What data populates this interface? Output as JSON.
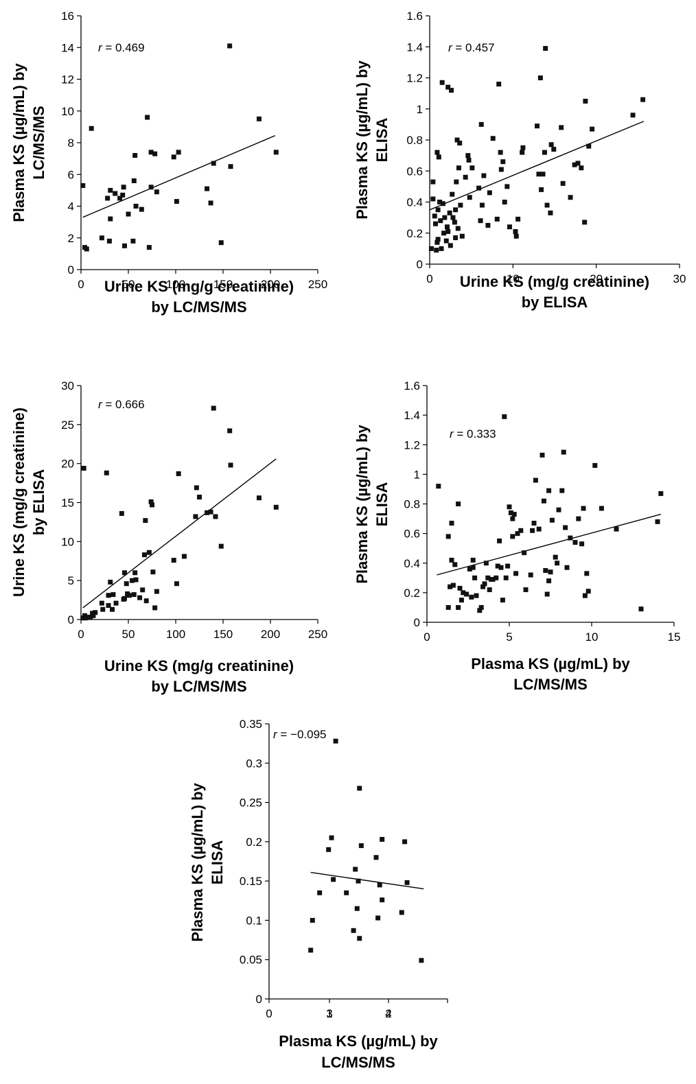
{
  "chart_data": [
    {
      "type": "scatter",
      "correlation_label": {
        "prefix": "r",
        "value": "= 0.469"
      },
      "xlabel": [
        "Urine KS (mg/g creatinine)",
        "by LC/MS/MS"
      ],
      "ylabel": [
        "Plasma KS (µg/mL) by",
        "LC/MS/MS"
      ],
      "xlim": [
        0,
        250
      ],
      "ylim": [
        0,
        16
      ],
      "xticks": [
        0,
        50,
        100,
        150,
        200,
        250
      ],
      "yticks": [
        0,
        2,
        4,
        6,
        8,
        10,
        12,
        14,
        16
      ],
      "trendline": [
        [
          2,
          3.3
        ],
        [
          205,
          8.45
        ]
      ],
      "points": [
        [
          2,
          5.3
        ],
        [
          4,
          1.4
        ],
        [
          6,
          1.3
        ],
        [
          11,
          8.9
        ],
        [
          22,
          2.0
        ],
        [
          28,
          4.5
        ],
        [
          30,
          1.8
        ],
        [
          31,
          3.2
        ],
        [
          31,
          5.0
        ],
        [
          36,
          4.8
        ],
        [
          41,
          4.5
        ],
        [
          44,
          4.7
        ],
        [
          45,
          5.2
        ],
        [
          46,
          1.5
        ],
        [
          50,
          3.5
        ],
        [
          55,
          1.8
        ],
        [
          56,
          5.6
        ],
        [
          57,
          7.2
        ],
        [
          58,
          4.0
        ],
        [
          64,
          3.8
        ],
        [
          70,
          9.6
        ],
        [
          72,
          1.4
        ],
        [
          74,
          5.2
        ],
        [
          74,
          7.4
        ],
        [
          78,
          7.3
        ],
        [
          80,
          4.9
        ],
        [
          98,
          7.1
        ],
        [
          101,
          4.3
        ],
        [
          103,
          7.4
        ],
        [
          133,
          5.1
        ],
        [
          137,
          4.2
        ],
        [
          140,
          6.7
        ],
        [
          148,
          1.7
        ],
        [
          157,
          14.1
        ],
        [
          158,
          6.5
        ],
        [
          188,
          9.5
        ],
        [
          206,
          7.4
        ]
      ]
    },
    {
      "type": "scatter",
      "correlation_label": {
        "prefix": "r",
        "value": "= 0.457"
      },
      "xlabel": [
        "Urine KS (mg/g creatinine)",
        "by ELISA"
      ],
      "ylabel": [
        "Plasma KS (µg/mL) by",
        "ELISA"
      ],
      "xlim": [
        0,
        30
      ],
      "ylim": [
        0,
        1.6
      ],
      "xticks": [
        0,
        10,
        20,
        30
      ],
      "yticks": [
        "0",
        "0.2",
        "0.4",
        "0.6",
        "0.8",
        "1",
        "1.2",
        "1.4",
        "1.6"
      ],
      "trendline": [
        [
          0,
          0.35
        ],
        [
          25.7,
          0.92
        ]
      ],
      "points": [
        [
          0.2,
          0.1
        ],
        [
          0.4,
          0.42
        ],
        [
          0.4,
          0.53
        ],
        [
          0.6,
          0.31
        ],
        [
          0.7,
          0.26
        ],
        [
          0.8,
          0.09
        ],
        [
          0.9,
          0.14
        ],
        [
          0.9,
          0.72
        ],
        [
          1.0,
          0.16
        ],
        [
          1.0,
          0.35
        ],
        [
          1.1,
          0.69
        ],
        [
          1.2,
          0.4
        ],
        [
          1.3,
          0.28
        ],
        [
          1.4,
          0.1
        ],
        [
          1.5,
          1.17
        ],
        [
          1.6,
          0.39
        ],
        [
          1.7,
          0.2
        ],
        [
          1.8,
          0.3
        ],
        [
          2.0,
          0.15
        ],
        [
          2.1,
          0.24
        ],
        [
          2.2,
          0.21
        ],
        [
          2.2,
          1.14
        ],
        [
          2.4,
          0.33
        ],
        [
          2.5,
          0.12
        ],
        [
          2.6,
          1.12
        ],
        [
          2.7,
          0.45
        ],
        [
          2.8,
          0.3
        ],
        [
          3.0,
          0.27
        ],
        [
          3.1,
          0.17
        ],
        [
          3.1,
          0.35
        ],
        [
          3.2,
          0.53
        ],
        [
          3.3,
          0.8
        ],
        [
          3.4,
          0.23
        ],
        [
          3.5,
          0.62
        ],
        [
          3.6,
          0.78
        ],
        [
          3.7,
          0.38
        ],
        [
          3.9,
          0.18
        ],
        [
          4.3,
          0.56
        ],
        [
          4.6,
          0.7
        ],
        [
          4.7,
          0.67
        ],
        [
          4.8,
          0.43
        ],
        [
          5.1,
          0.62
        ],
        [
          5.9,
          0.49
        ],
        [
          6.1,
          0.28
        ],
        [
          6.2,
          0.9
        ],
        [
          6.3,
          0.38
        ],
        [
          6.5,
          0.57
        ],
        [
          7.0,
          0.25
        ],
        [
          7.2,
          0.46
        ],
        [
          7.6,
          0.81
        ],
        [
          8.1,
          0.29
        ],
        [
          8.3,
          1.16
        ],
        [
          8.5,
          0.72
        ],
        [
          8.6,
          0.61
        ],
        [
          8.8,
          0.66
        ],
        [
          9.0,
          0.4
        ],
        [
          9.3,
          0.5
        ],
        [
          9.6,
          0.24
        ],
        [
          10.3,
          0.21
        ],
        [
          10.4,
          0.18
        ],
        [
          10.6,
          0.29
        ],
        [
          11.1,
          0.72
        ],
        [
          11.2,
          0.75
        ],
        [
          12.9,
          0.89
        ],
        [
          13.1,
          0.58
        ],
        [
          13.3,
          1.2
        ],
        [
          13.4,
          0.48
        ],
        [
          13.6,
          0.58
        ],
        [
          13.8,
          0.72
        ],
        [
          13.9,
          1.39
        ],
        [
          14.1,
          0.38
        ],
        [
          14.5,
          0.33
        ],
        [
          14.6,
          0.77
        ],
        [
          14.9,
          0.74
        ],
        [
          15.8,
          0.88
        ],
        [
          16.0,
          0.52
        ],
        [
          16.9,
          0.43
        ],
        [
          17.4,
          0.64
        ],
        [
          17.8,
          0.65
        ],
        [
          18.2,
          0.62
        ],
        [
          18.6,
          0.27
        ],
        [
          18.7,
          1.05
        ],
        [
          19.1,
          0.76
        ],
        [
          19.5,
          0.87
        ],
        [
          24.4,
          0.96
        ],
        [
          25.6,
          1.06
        ]
      ]
    },
    {
      "type": "scatter",
      "correlation_label": {
        "prefix": "r",
        "value": "= 0.666"
      },
      "xlabel": [
        "Urine KS (mg/g creatinine)",
        "by LC/MS/MS"
      ],
      "ylabel": [
        "Urine KS (mg/g creatinine)",
        "by ELISA"
      ],
      "xlim": [
        0,
        250
      ],
      "ylim": [
        0,
        30
      ],
      "xticks": [
        0,
        50,
        100,
        150,
        200,
        250
      ],
      "yticks": [
        0,
        5,
        10,
        15,
        20,
        25,
        30
      ],
      "trendline": [
        [
          2,
          1.5
        ],
        [
          206,
          20.6
        ]
      ],
      "points": [
        [
          2,
          0.2
        ],
        [
          3,
          19.4
        ],
        [
          4,
          0.5
        ],
        [
          5,
          0.2
        ],
        [
          8,
          0.3
        ],
        [
          10,
          0.3
        ],
        [
          12,
          0.8
        ],
        [
          13,
          0.5
        ],
        [
          15,
          0.9
        ],
        [
          22,
          2.1
        ],
        [
          23,
          1.3
        ],
        [
          27,
          18.8
        ],
        [
          29,
          3.1
        ],
        [
          29,
          1.8
        ],
        [
          31,
          4.8
        ],
        [
          33,
          1.3
        ],
        [
          34,
          3.2
        ],
        [
          37,
          2.1
        ],
        [
          43,
          13.6
        ],
        [
          45,
          2.6
        ],
        [
          46,
          6.0
        ],
        [
          46,
          2.7
        ],
        [
          48,
          4.6
        ],
        [
          49,
          3.3
        ],
        [
          51,
          3.1
        ],
        [
          54,
          5.0
        ],
        [
          56,
          3.2
        ],
        [
          57,
          6.0
        ],
        [
          58,
          5.1
        ],
        [
          62,
          2.8
        ],
        [
          65,
          3.8
        ],
        [
          67,
          8.3
        ],
        [
          68,
          12.7
        ],
        [
          69,
          2.4
        ],
        [
          72,
          8.6
        ],
        [
          74,
          15.1
        ],
        [
          75,
          14.7
        ],
        [
          76,
          6.1
        ],
        [
          78,
          1.5
        ],
        [
          80,
          3.6
        ],
        [
          98,
          7.6
        ],
        [
          101,
          4.6
        ],
        [
          103,
          18.7
        ],
        [
          109,
          8.1
        ],
        [
          121,
          13.2
        ],
        [
          122,
          16.9
        ],
        [
          125,
          15.7
        ],
        [
          133,
          13.7
        ],
        [
          137,
          13.8
        ],
        [
          140,
          27.1
        ],
        [
          142,
          13.2
        ],
        [
          148,
          9.4
        ],
        [
          157,
          24.2
        ],
        [
          158,
          19.8
        ],
        [
          188,
          15.6
        ],
        [
          206,
          14.4
        ]
      ]
    },
    {
      "type": "scatter",
      "correlation_label": {
        "prefix": "r",
        "value": "= 0.333"
      },
      "xlabel": [
        "Plasma KS (µg/mL) by",
        "LC/MS/MS"
      ],
      "ylabel": [
        "Plasma KS (µg/mL) by",
        "ELISA"
      ],
      "xlim": [
        0,
        15
      ],
      "ylim": [
        0,
        1.6
      ],
      "xticks": [
        0,
        5,
        10,
        15
      ],
      "yticks": [
        "0",
        "0.2",
        "0.4",
        "0.6",
        "0.8",
        "1",
        "1.2",
        "1.4",
        "1.6"
      ],
      "trendline": [
        [
          0.6,
          0.32
        ],
        [
          14.2,
          0.73
        ]
      ],
      "points": [
        [
          0.7,
          0.92
        ],
        [
          1.3,
          0.58
        ],
        [
          1.3,
          0.1
        ],
        [
          1.4,
          0.24
        ],
        [
          1.5,
          0.42
        ],
        [
          1.5,
          0.67
        ],
        [
          1.6,
          0.25
        ],
        [
          1.7,
          0.39
        ],
        [
          1.9,
          0.8
        ],
        [
          1.9,
          0.1
        ],
        [
          2.0,
          0.23
        ],
        [
          2.1,
          0.15
        ],
        [
          2.2,
          0.2
        ],
        [
          2.4,
          0.19
        ],
        [
          2.6,
          0.36
        ],
        [
          2.7,
          0.17
        ],
        [
          2.8,
          0.42
        ],
        [
          2.8,
          0.37
        ],
        [
          2.9,
          0.3
        ],
        [
          3.0,
          0.18
        ],
        [
          3.2,
          0.08
        ],
        [
          3.3,
          0.1
        ],
        [
          3.4,
          0.24
        ],
        [
          3.5,
          0.26
        ],
        [
          3.6,
          0.4
        ],
        [
          3.7,
          0.3
        ],
        [
          3.8,
          0.22
        ],
        [
          3.9,
          0.29
        ],
        [
          4.0,
          0.29
        ],
        [
          4.2,
          0.3
        ],
        [
          4.3,
          0.38
        ],
        [
          4.4,
          0.55
        ],
        [
          4.5,
          0.37
        ],
        [
          4.6,
          0.15
        ],
        [
          4.7,
          1.39
        ],
        [
          4.8,
          0.3
        ],
        [
          4.9,
          0.38
        ],
        [
          5.0,
          0.78
        ],
        [
          5.1,
          0.74
        ],
        [
          5.2,
          0.7
        ],
        [
          5.2,
          0.58
        ],
        [
          5.3,
          0.73
        ],
        [
          5.4,
          0.33
        ],
        [
          5.5,
          0.6
        ],
        [
          5.7,
          0.62
        ],
        [
          5.9,
          0.47
        ],
        [
          6.0,
          0.22
        ],
        [
          6.3,
          0.32
        ],
        [
          6.4,
          0.62
        ],
        [
          6.5,
          0.67
        ],
        [
          6.6,
          0.96
        ],
        [
          6.8,
          0.63
        ],
        [
          7.0,
          1.13
        ],
        [
          7.1,
          0.82
        ],
        [
          7.2,
          0.35
        ],
        [
          7.3,
          0.19
        ],
        [
          7.4,
          0.89
        ],
        [
          7.4,
          0.28
        ],
        [
          7.5,
          0.34
        ],
        [
          7.6,
          0.69
        ],
        [
          7.8,
          0.44
        ],
        [
          7.9,
          0.4
        ],
        [
          8.0,
          0.76
        ],
        [
          8.2,
          0.89
        ],
        [
          8.3,
          1.15
        ],
        [
          8.4,
          0.64
        ],
        [
          8.5,
          0.37
        ],
        [
          8.7,
          0.57
        ],
        [
          9.0,
          0.54
        ],
        [
          9.2,
          0.7
        ],
        [
          9.4,
          0.53
        ],
        [
          9.5,
          0.77
        ],
        [
          9.6,
          0.18
        ],
        [
          9.7,
          0.33
        ],
        [
          9.8,
          0.21
        ],
        [
          10.2,
          1.06
        ],
        [
          10.6,
          0.77
        ],
        [
          11.5,
          0.63
        ],
        [
          13.0,
          0.09
        ],
        [
          14.0,
          0.68
        ],
        [
          14.2,
          0.87
        ]
      ]
    },
    {
      "type": "scatter",
      "correlation_label": {
        "prefix": "r",
        "value": "= −0.095"
      },
      "xlabel": [
        "Plasma KS (µg/mL) by",
        "LC/MS/MS"
      ],
      "ylabel": [
        "Plasma KS (µg/mL) by",
        "ELISA"
      ],
      "xlim": [
        0,
        3
      ],
      "ylim": [
        0,
        0.35
      ],
      "xticks": [
        "0",
        "1",
        "2",
        "3",
        "4"
      ],
      "yticks": [
        "0",
        "0.05",
        "0.1",
        "0.15",
        "0.2",
        "0.25",
        "0.3",
        "0.35"
      ],
      "trendline": [
        [
          0.7,
          0.161
        ],
        [
          2.6,
          0.14
        ]
      ],
      "points": [
        [
          0.7,
          0.062
        ],
        [
          0.73,
          0.1
        ],
        [
          0.85,
          0.135
        ],
        [
          1.0,
          0.19
        ],
        [
          1.05,
          0.205
        ],
        [
          1.08,
          0.152
        ],
        [
          1.12,
          0.328
        ],
        [
          1.3,
          0.135
        ],
        [
          1.42,
          0.087
        ],
        [
          1.45,
          0.165
        ],
        [
          1.48,
          0.115
        ],
        [
          1.5,
          0.15
        ],
        [
          1.52,
          0.077
        ],
        [
          1.52,
          0.268
        ],
        [
          1.55,
          0.195
        ],
        [
          1.8,
          0.18
        ],
        [
          1.83,
          0.103
        ],
        [
          1.86,
          0.145
        ],
        [
          1.9,
          0.203
        ],
        [
          1.9,
          0.126
        ],
        [
          2.23,
          0.11
        ],
        [
          2.28,
          0.2
        ],
        [
          2.32,
          0.148
        ],
        [
          2.56,
          0.049
        ]
      ]
    }
  ]
}
